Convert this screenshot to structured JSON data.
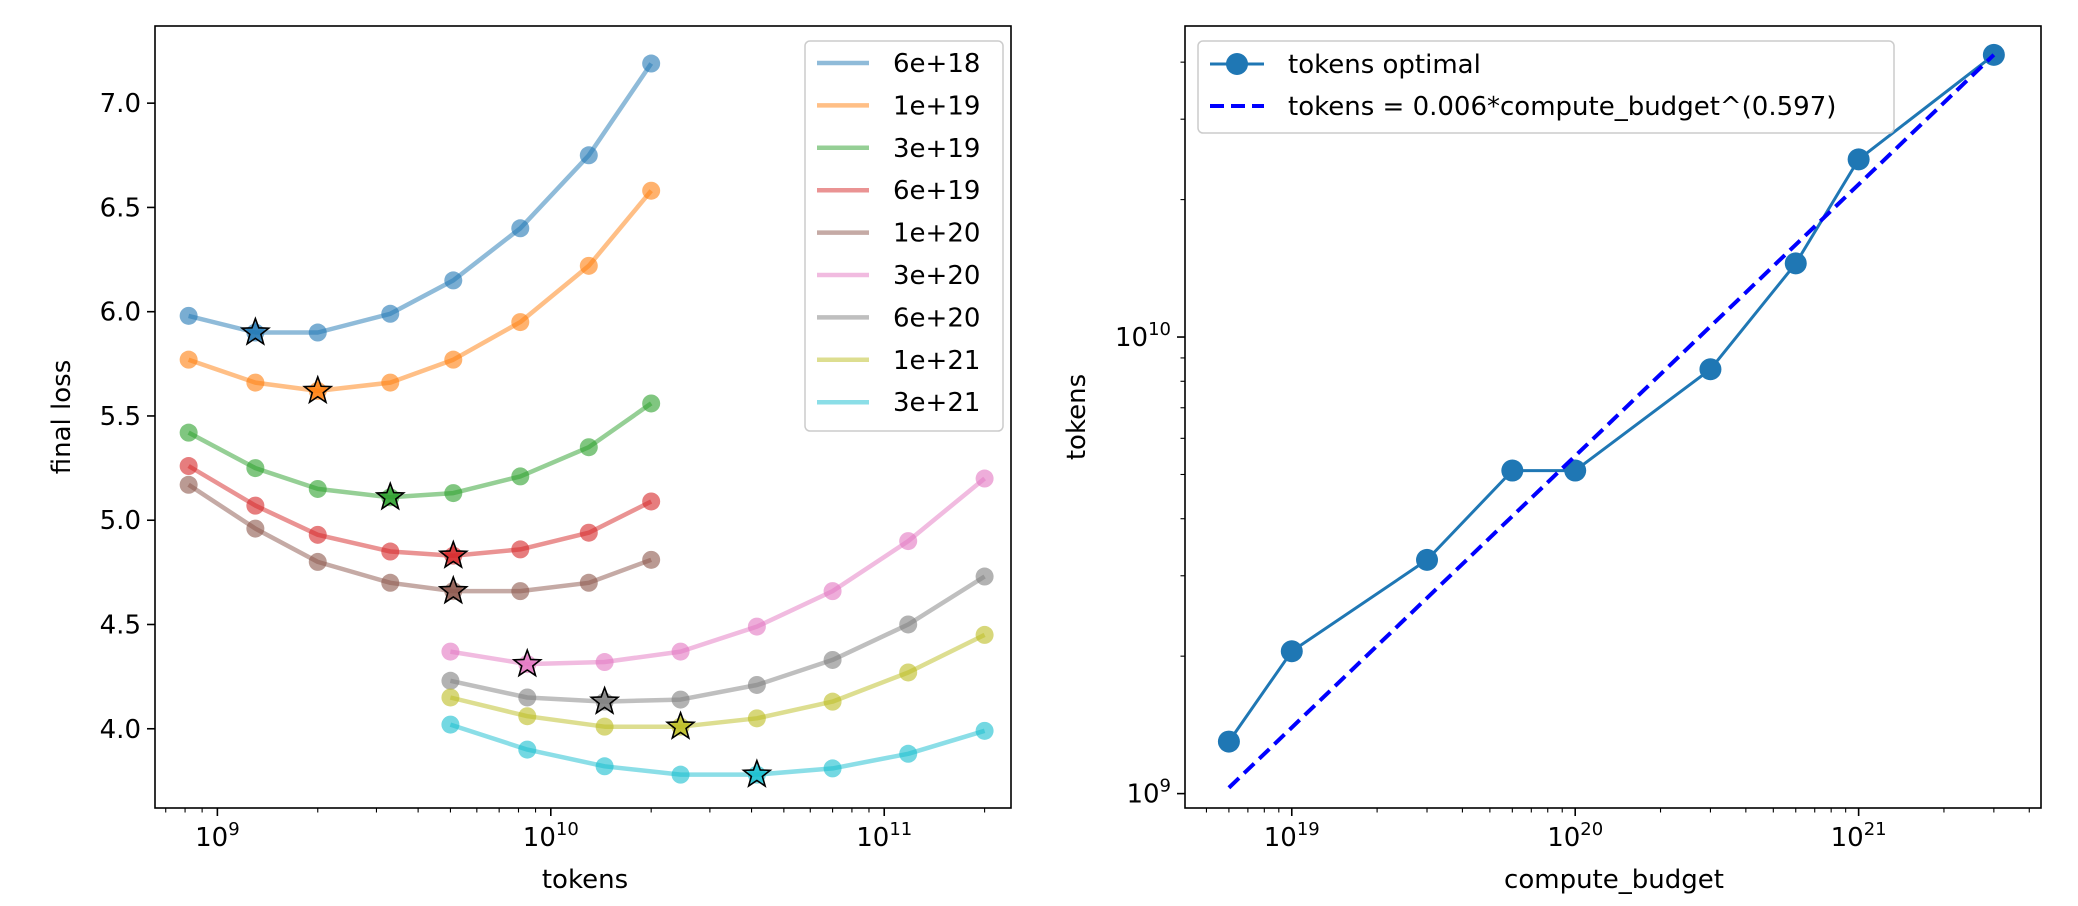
{
  "chart_data": [
    {
      "type": "line",
      "xlabel": "tokens",
      "ylabel": "final loss",
      "xscale": "log",
      "xlim": [
        650000000,
        240000000000
      ],
      "ylim": [
        3.62,
        7.37
      ],
      "x_ticks": [
        {
          "base": "10",
          "exp": "9",
          "value": 1000000000.0
        },
        {
          "base": "10",
          "exp": "10",
          "value": 10000000000.0
        },
        {
          "base": "10",
          "exp": "11",
          "value": 100000000000.0
        }
      ],
      "y_ticks": [
        {
          "label": "4.0",
          "value": 4.0
        },
        {
          "label": "4.5",
          "value": 4.5
        },
        {
          "label": "5.0",
          "value": 5.0
        },
        {
          "label": "5.5",
          "value": 5.5
        },
        {
          "label": "6.0",
          "value": 6.0
        },
        {
          "label": "6.5",
          "value": 6.5
        },
        {
          "label": "7.0",
          "value": 7.0
        }
      ],
      "legend_position": "top-right",
      "series": [
        {
          "name": "6e+18",
          "color": "#1f77b4",
          "x": [
            820000000,
            1300000000,
            2000000000,
            3300000000,
            5100000000,
            8100000000,
            13000000000,
            20000000000
          ],
          "y": [
            5.98,
            5.9,
            5.9,
            5.99,
            6.15,
            6.4,
            6.75,
            7.19
          ],
          "optimum": {
            "x": 1300000000,
            "y": 5.9
          }
        },
        {
          "name": "1e+19",
          "color": "#ff7f0e",
          "x": [
            820000000,
            1300000000,
            2000000000,
            3300000000,
            5100000000,
            8100000000,
            13000000000,
            20000000000
          ],
          "y": [
            5.77,
            5.66,
            5.62,
            5.66,
            5.77,
            5.95,
            6.22,
            6.58
          ],
          "optimum": {
            "x": 2000000000,
            "y": 5.62
          }
        },
        {
          "name": "3e+19",
          "color": "#2ca02c",
          "x": [
            820000000,
            1300000000,
            2000000000,
            3300000000,
            5100000000,
            8100000000,
            13000000000,
            20000000000
          ],
          "y": [
            5.42,
            5.25,
            5.15,
            5.11,
            5.13,
            5.21,
            5.35,
            5.56
          ],
          "optimum": {
            "x": 3300000000,
            "y": 5.11
          }
        },
        {
          "name": "6e+19",
          "color": "#d62728",
          "x": [
            820000000,
            1300000000,
            2000000000,
            3300000000,
            5100000000,
            8100000000,
            13000000000,
            20000000000
          ],
          "y": [
            5.26,
            5.07,
            4.93,
            4.85,
            4.83,
            4.86,
            4.94,
            5.09
          ],
          "optimum": {
            "x": 5100000000,
            "y": 4.83
          }
        },
        {
          "name": "1e+20",
          "color": "#8c564b",
          "x": [
            820000000,
            1300000000,
            2000000000,
            3300000000,
            5100000000,
            8100000000,
            13000000000,
            20000000000
          ],
          "y": [
            5.17,
            4.96,
            4.8,
            4.7,
            4.66,
            4.66,
            4.7,
            4.81
          ],
          "optimum": {
            "x": 5100000000,
            "y": 4.66
          }
        },
        {
          "name": "3e+20",
          "color": "#e377c2",
          "x": [
            5000000000,
            8500000000,
            14500000000,
            24500000000,
            41500000000,
            70000000000,
            118000000000,
            200000000000
          ],
          "y": [
            4.37,
            4.31,
            4.32,
            4.37,
            4.49,
            4.66,
            4.9,
            5.2
          ],
          "optimum": {
            "x": 8500000000,
            "y": 4.31
          }
        },
        {
          "name": "6e+20",
          "color": "#7f7f7f",
          "x": [
            5000000000,
            8500000000,
            14500000000,
            24500000000,
            41500000000,
            70000000000,
            118000000000,
            200000000000
          ],
          "y": [
            4.23,
            4.15,
            4.13,
            4.14,
            4.21,
            4.33,
            4.5,
            4.73
          ],
          "optimum": {
            "x": 14500000000,
            "y": 4.13
          }
        },
        {
          "name": "1e+21",
          "color": "#bcbd22",
          "x": [
            5000000000,
            8500000000,
            14500000000,
            24500000000,
            41500000000,
            70000000000,
            118000000000,
            200000000000
          ],
          "y": [
            4.15,
            4.06,
            4.01,
            4.01,
            4.05,
            4.13,
            4.27,
            4.45
          ],
          "optimum": {
            "x": 24500000000,
            "y": 4.01
          }
        },
        {
          "name": "3e+21",
          "color": "#17becf",
          "x": [
            5000000000,
            8500000000,
            14500000000,
            24500000000,
            41500000000,
            70000000000,
            118000000000,
            200000000000
          ],
          "y": [
            4.02,
            3.9,
            3.82,
            3.78,
            3.78,
            3.81,
            3.88,
            3.99
          ],
          "optimum": {
            "x": 41500000000,
            "y": 3.78
          }
        }
      ]
    },
    {
      "type": "line",
      "xlabel": "compute_budget",
      "ylabel": "tokens",
      "xscale": "log",
      "yscale": "log",
      "xlim": [
        4.2e+18,
        4.4e+21
      ],
      "ylim": [
        930000000.0,
        48000000000.0
      ],
      "x_ticks": [
        {
          "base": "10",
          "exp": "19",
          "value": 1e+19
        },
        {
          "base": "10",
          "exp": "20",
          "value": 1e+20
        },
        {
          "base": "10",
          "exp": "21",
          "value": 1e+21
        }
      ],
      "y_ticks": [
        {
          "base": "10",
          "exp": "9",
          "value": 1000000000.0
        },
        {
          "base": "10",
          "exp": "10",
          "value": 10000000000.0
        }
      ],
      "legend_position": "top-left",
      "series": [
        {
          "name": "tokens optimal",
          "color": "#1f77b4",
          "style": "solid-markers",
          "x": [
            6e+18,
            1e+19,
            3e+19,
            6e+19,
            1e+20,
            3e+20,
            6e+20,
            1e+21,
            3e+21
          ],
          "y": [
            1300000000.0,
            2050000000.0,
            3250000000.0,
            5100000000.0,
            5100000000.0,
            8500000000.0,
            14500000000.0,
            24500000000.0,
            41500000000.0
          ]
        },
        {
          "name": "tokens = 0.006*compute_budget^(0.597)",
          "color": "#0000ff",
          "style": "dashed",
          "x": [
            6e+18,
            3e+21
          ],
          "y": [
            1030000000.0,
            41500000000.0
          ]
        }
      ]
    }
  ]
}
